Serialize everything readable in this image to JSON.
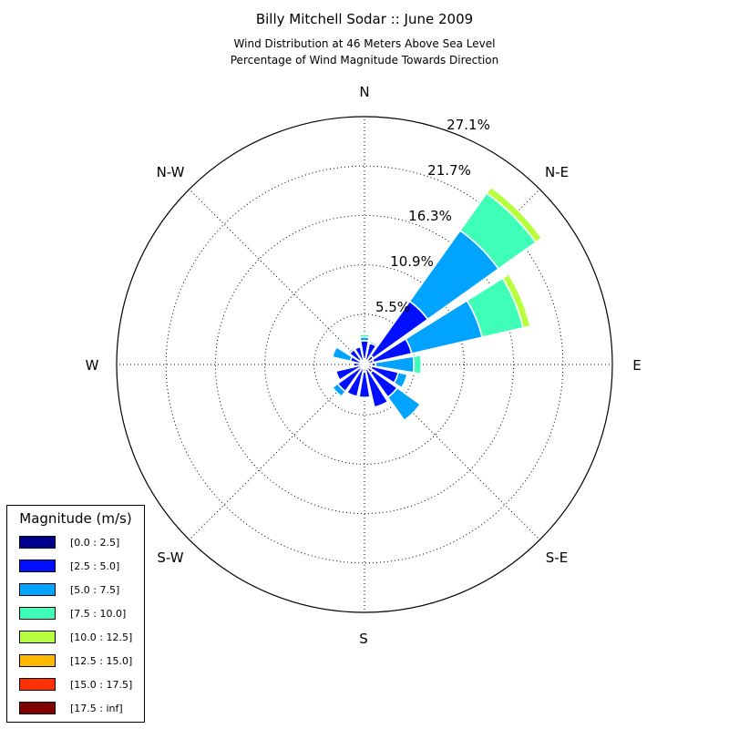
{
  "title": "Billy Mitchell Sodar :: June 2009",
  "subtitle_line1": "Wind Distribution at 46 Meters Above Sea Level",
  "subtitle_line2": "Percentage of Wind Magnitude Towards Direction",
  "chart_data": {
    "type": "wind-rose",
    "title": "Billy Mitchell Sodar :: June 2009",
    "subtitle": [
      "Wind Distribution at 46 Meters Above Sea Level",
      "Percentage of Wind Magnitude Towards Direction"
    ],
    "compass_labels": [
      "N",
      "N-E",
      "E",
      "S-E",
      "S",
      "S-W",
      "W",
      "N-W"
    ],
    "radial_tick_labels": [
      "5.5%",
      "10.9%",
      "16.3%",
      "21.7%",
      "27.1%"
    ],
    "radial_ticks": [
      5.5,
      10.9,
      16.3,
      21.7,
      27.1
    ],
    "r_max": 27.1,
    "grid": true,
    "legend": {
      "title": "Magnitude (m/s)",
      "placement": "lower-left",
      "entries": [
        "[0.0 : 2.5]",
        "[2.5 : 5.0]",
        "[5.0 : 7.5]",
        "[7.5 : 10.0]",
        "[10.0 : 12.5]",
        "[12.5 : 15.0]",
        "[15.0 : 17.5]",
        "[17.5 : inf]"
      ],
      "colors": [
        "#00008f",
        "#0010ff",
        "#00a4ff",
        "#3fffb8",
        "#b8ff3f",
        "#ffb800",
        "#ff3000",
        "#800000"
      ]
    },
    "direction_sectors": [
      {
        "direction": 0,
        "cumulative": [
          0.6,
          2.6,
          3.0,
          3.3
        ]
      },
      {
        "direction": 22.5,
        "cumulative": [
          0.3,
          2.4,
          2.6
        ]
      },
      {
        "direction": 45,
        "cumulative": [
          1.2,
          8.5,
          18.0,
          23.0,
          23.8
        ]
      },
      {
        "direction": 67.5,
        "cumulative": [
          1.0,
          5.3,
          13.2,
          17.8,
          18.6
        ]
      },
      {
        "direction": 90,
        "cumulative": [
          0.8,
          1.2,
          5.4,
          6.2
        ]
      },
      {
        "direction": 112.5,
        "cumulative": [
          0.8,
          3.8,
          4.8
        ]
      },
      {
        "direction": 135,
        "cumulative": [
          1.1,
          4.4,
          7.5
        ]
      },
      {
        "direction": 157.5,
        "cumulative": [
          0.3,
          4.8
        ]
      },
      {
        "direction": 180,
        "cumulative": [
          0.8,
          3.6
        ]
      },
      {
        "direction": 202.5,
        "cumulative": [
          0.3,
          3.6
        ]
      },
      {
        "direction": 225,
        "cumulative": [
          0.5,
          3.6,
          4.3
        ]
      },
      {
        "direction": 247.5,
        "cumulative": [
          0.2,
          3.2
        ]
      },
      {
        "direction": 270,
        "cumulative": [
          0.3,
          1.2
        ]
      },
      {
        "direction": 292.5,
        "cumulative": [
          0.5,
          1.6,
          3.6
        ]
      },
      {
        "direction": 315,
        "cumulative": [
          0.6,
          2.0,
          2.2
        ]
      },
      {
        "direction": 337.5,
        "cumulative": [
          0.3,
          2.0
        ]
      }
    ]
  }
}
